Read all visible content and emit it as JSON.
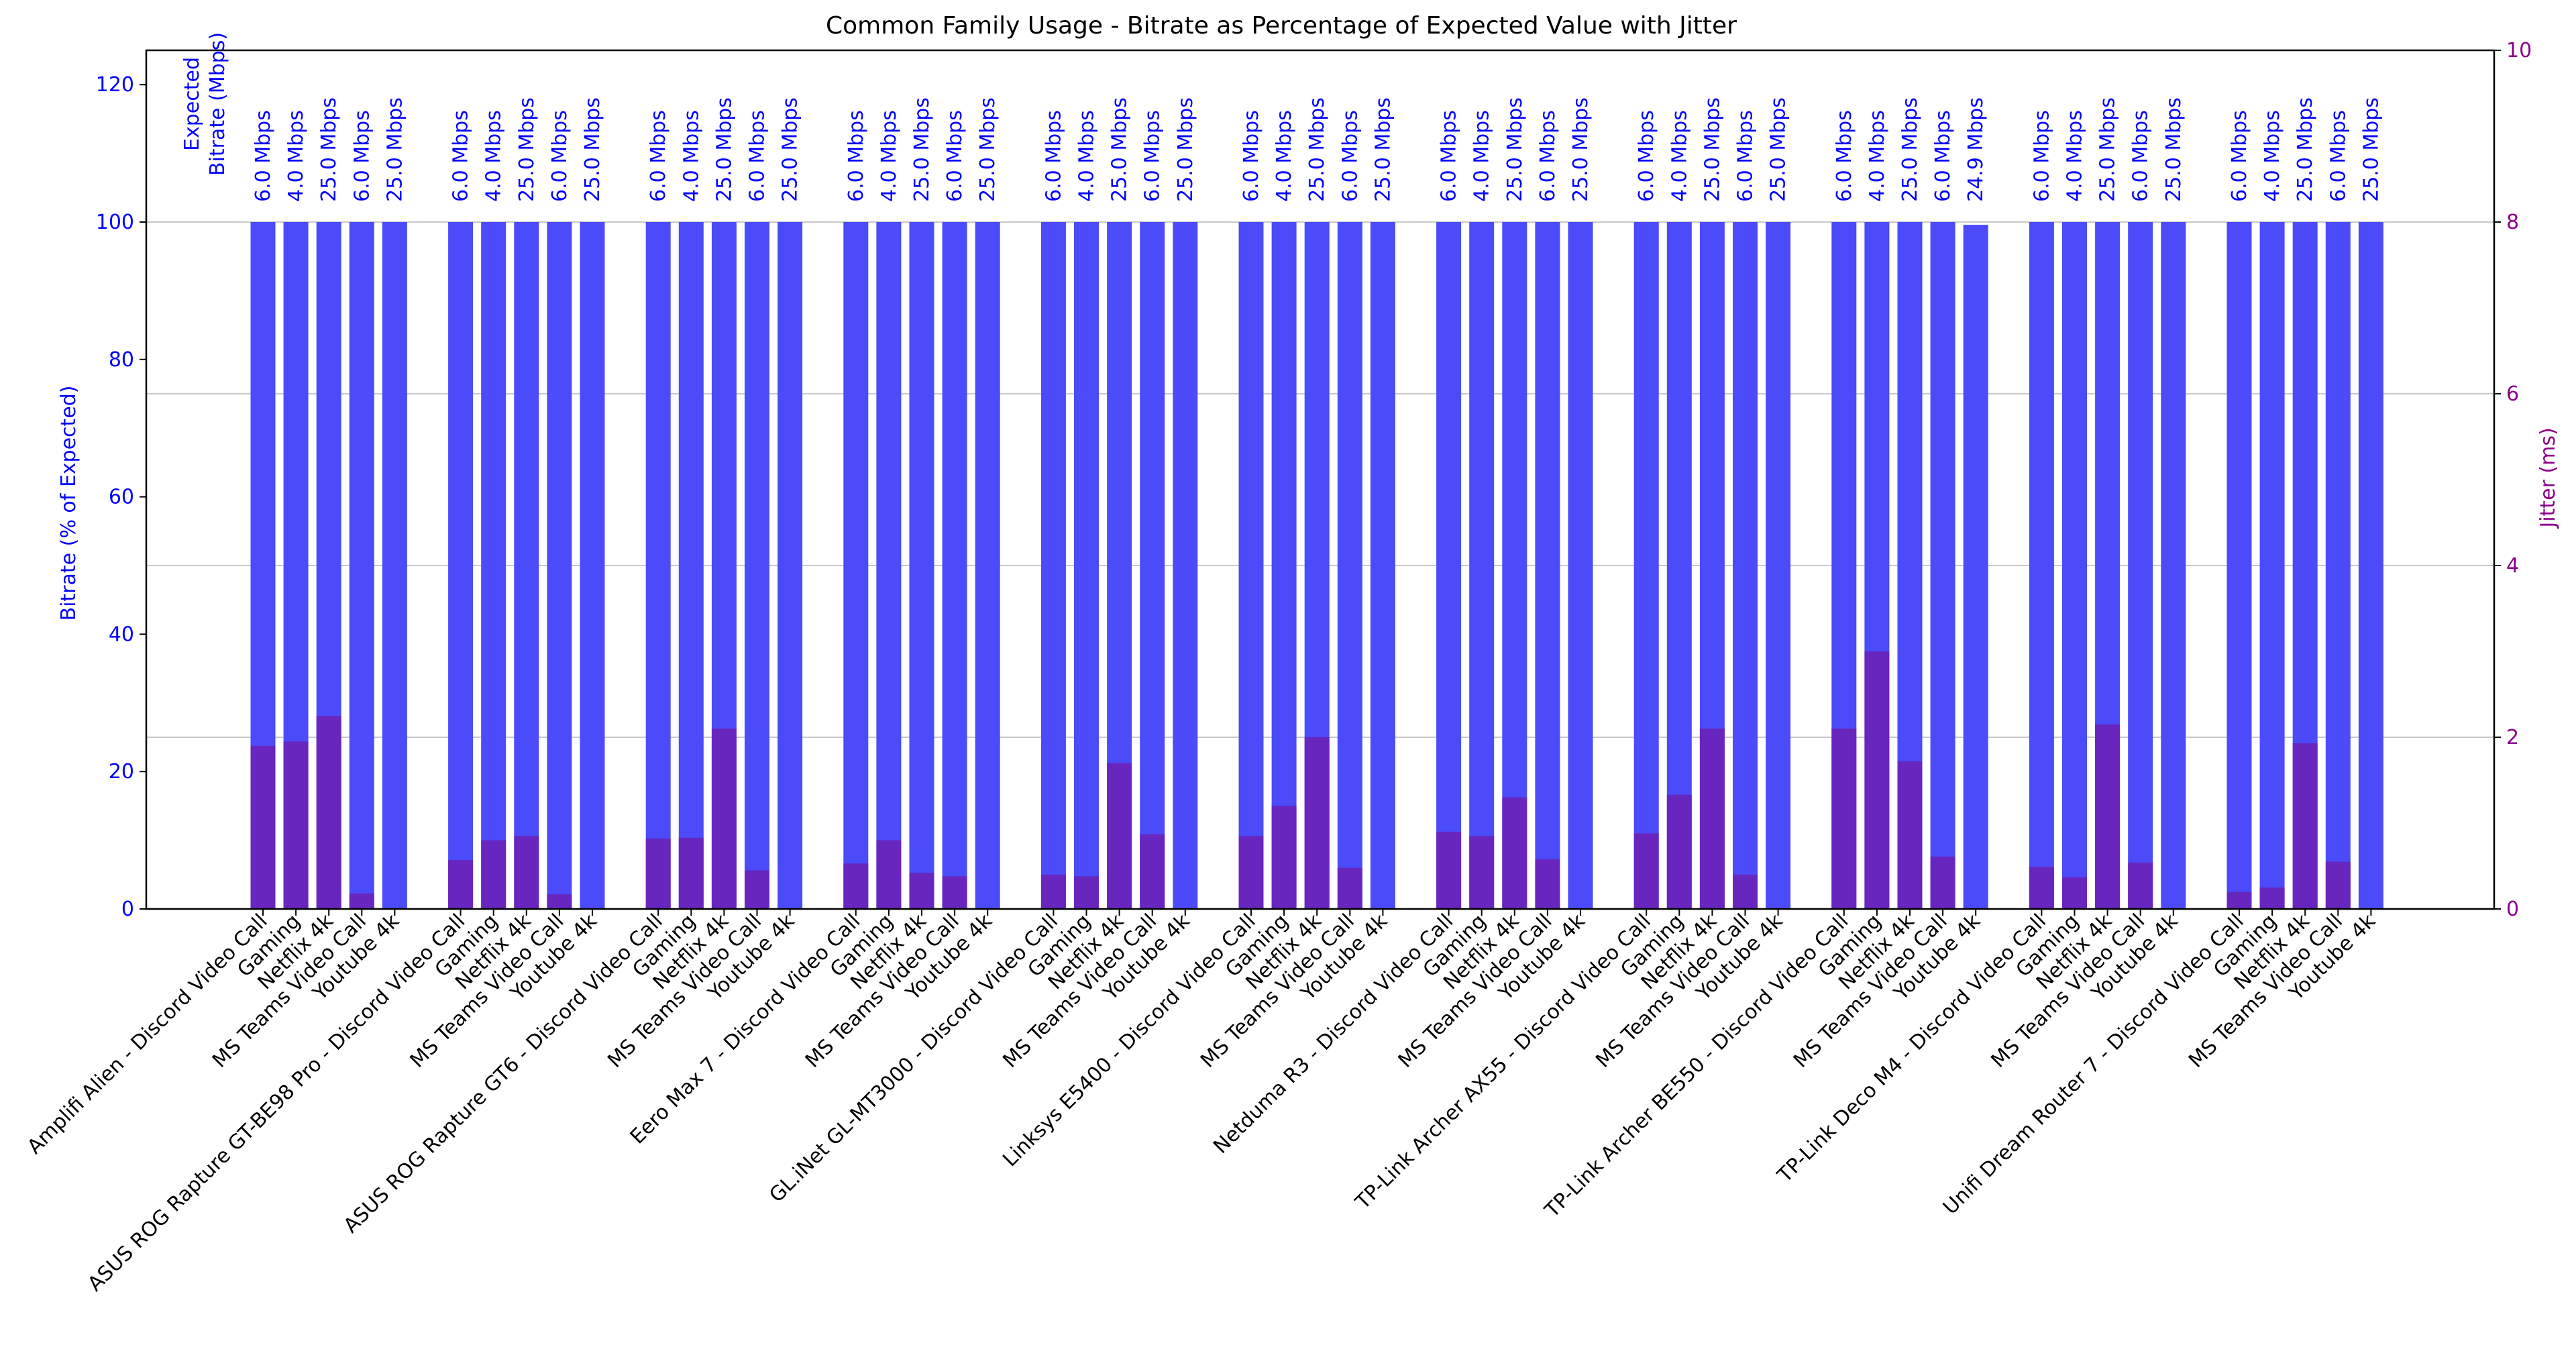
{
  "chart_data": {
    "type": "bar",
    "title": "Common Family Usage - Bitrate as Percentage of Expected Value with Jitter",
    "ylabel_left": "Bitrate (% of Expected)",
    "ylabel_right": "Jitter (ms)",
    "ylim_left": [
      0,
      125
    ],
    "ylim_right": [
      0,
      10
    ],
    "yticks_left": [
      0,
      20,
      40,
      60,
      80,
      100,
      120
    ],
    "yticks_right": [
      0,
      2,
      4,
      6,
      8,
      10
    ],
    "grid": "horizontal",
    "expected_header": [
      "Expected",
      "Bitrate (Mbps)"
    ],
    "colors": {
      "bitrate": "#4b4bfa",
      "jitter": "#6b22b8",
      "left_axis": "#0000ff",
      "right_axis": "#8b008b",
      "grid": "#c8c8c8"
    },
    "categories": [
      "Amplifi Alien - Discord Video Call",
      "Gaming",
      "Netflix 4k",
      "MS Teams Video Call",
      "Youtube 4k",
      "ASUS ROG Rapture GT-BE98 Pro - Discord Video Call",
      "Gaming",
      "Netflix 4k",
      "MS Teams Video Call",
      "Youtube 4k",
      "ASUS ROG Rapture GT6 - Discord Video Call",
      "Gaming",
      "Netflix 4k",
      "MS Teams Video Call",
      "Youtube 4k",
      "Eero Max 7 - Discord Video Call",
      "Gaming",
      "Netflix 4k",
      "MS Teams Video Call",
      "Youtube 4k",
      "GL.iNet GL-MT3000 - Discord Video Call",
      "Gaming",
      "Netflix 4k",
      "MS Teams Video Call",
      "Youtube 4k",
      "Linksys E5400 - Discord Video Call",
      "Gaming",
      "Netflix 4k",
      "MS Teams Video Call",
      "Youtube 4k",
      "Netduma R3 - Discord Video Call",
      "Gaming",
      "Netflix 4k",
      "MS Teams Video Call",
      "Youtube 4k",
      "TP-Link Archer AX55 - Discord Video Call",
      "Gaming",
      "Netflix 4k",
      "MS Teams Video Call",
      "Youtube 4k",
      "TP-Link Archer BE550 - Discord Video Call",
      "Gaming",
      "Netflix 4k",
      "MS Teams Video Call",
      "Youtube 4k",
      "TP-Link Deco M4 - Discord Video Call",
      "Gaming",
      "Netflix 4k",
      "MS Teams Video Call",
      "Youtube 4k",
      "Unifi Dream Router 7 - Discord Video Call",
      "Gaming",
      "Netflix 4k",
      "MS Teams Video Call",
      "Youtube 4k"
    ],
    "expected_labels": [
      "6.0 Mbps",
      "4.0 Mbps",
      "25.0 Mbps",
      "6.0 Mbps",
      "25.0 Mbps",
      "6.0 Mbps",
      "4.0 Mbps",
      "25.0 Mbps",
      "6.0 Mbps",
      "25.0 Mbps",
      "6.0 Mbps",
      "4.0 Mbps",
      "25.0 Mbps",
      "6.0 Mbps",
      "25.0 Mbps",
      "6.0 Mbps",
      "4.0 Mbps",
      "25.0 Mbps",
      "6.0 Mbps",
      "25.0 Mbps",
      "6.0 Mbps",
      "4.0 Mbps",
      "25.0 Mbps",
      "6.0 Mbps",
      "25.0 Mbps",
      "6.0 Mbps",
      "4.0 Mbps",
      "25.0 Mbps",
      "6.0 Mbps",
      "25.0 Mbps",
      "6.0 Mbps",
      "4.0 Mbps",
      "25.0 Mbps",
      "6.0 Mbps",
      "25.0 Mbps",
      "6.0 Mbps",
      "4.0 Mbps",
      "25.0 Mbps",
      "6.0 Mbps",
      "25.0 Mbps",
      "6.0 Mbps",
      "4.0 Mbps",
      "25.0 Mbps",
      "6.0 Mbps",
      "24.9 Mbps",
      "6.0 Mbps",
      "4.0 Mbps",
      "25.0 Mbps",
      "6.0 Mbps",
      "25.0 Mbps",
      "6.0 Mbps",
      "4.0 Mbps",
      "25.0 Mbps",
      "6.0 Mbps",
      "25.0 Mbps"
    ],
    "series": [
      {
        "name": "Bitrate (% of Expected)",
        "axis": "left",
        "values": [
          100,
          100,
          100,
          100,
          100,
          100,
          100,
          100,
          100,
          100,
          100,
          100,
          100,
          100,
          100,
          100,
          100,
          100,
          100,
          100,
          100,
          100,
          100,
          100,
          100,
          100,
          100,
          100,
          100,
          100,
          100,
          100,
          100,
          100,
          100,
          100,
          100,
          100,
          100,
          100,
          100,
          100,
          100,
          100,
          99.6,
          100,
          100,
          100,
          100,
          100,
          100,
          100,
          100,
          100,
          100
        ]
      },
      {
        "name": "Jitter (ms)",
        "axis": "right",
        "values": [
          1.9,
          1.95,
          2.25,
          0.18,
          0,
          0.57,
          0.8,
          0.85,
          0.17,
          0,
          0.82,
          0.83,
          2.1,
          0.45,
          0,
          0.53,
          0.8,
          0.42,
          0.38,
          0,
          0.4,
          0.38,
          1.7,
          0.87,
          0,
          0.85,
          1.2,
          2.0,
          0.48,
          0,
          0.9,
          0.85,
          1.3,
          0.58,
          0,
          0.88,
          1.33,
          2.1,
          0.4,
          0,
          2.1,
          3.0,
          1.72,
          0.61,
          0,
          0.49,
          0.37,
          2.15,
          0.54,
          0,
          0.2,
          0.25,
          1.93,
          0.55,
          0
        ]
      }
    ]
  }
}
